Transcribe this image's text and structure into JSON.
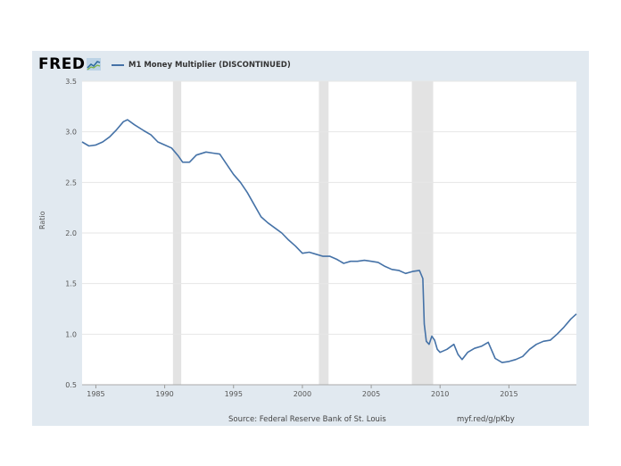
{
  "header": {
    "logo_text": "FRED",
    "legend_label": "M1 Money Multiplier (DISCONTINUED)"
  },
  "footer": {
    "source": "Source: Federal Reserve Bank of St. Louis",
    "link": "myf.red/g/pKby"
  },
  "colors": {
    "line": "#4572a7",
    "recession": "#e3e3e3",
    "card": "#e1e9f0",
    "grid": "#e6e6e6"
  },
  "chart_data": {
    "type": "line",
    "title": "M1 Money Multiplier (DISCONTINUED)",
    "xlabel": "",
    "ylabel": "Ratio",
    "xlim": [
      1984.0,
      2019.9
    ],
    "ylim": [
      0.5,
      3.5
    ],
    "xticks": [
      1985,
      1990,
      1995,
      2000,
      2005,
      2010,
      2015
    ],
    "xtick_labels": [
      "1985",
      "1990",
      "1995",
      "2000",
      "2005",
      "2010",
      "2015"
    ],
    "yticks": [
      0.5,
      1.0,
      1.5,
      2.0,
      2.5,
      3.0,
      3.5
    ],
    "ytick_labels": [
      "0.5",
      "1.0",
      "1.5",
      "2.0",
      "2.5",
      "3.0",
      "3.5"
    ],
    "recessions": [
      [
        1990.6,
        1991.2
      ],
      [
        2001.2,
        2001.9
      ],
      [
        2007.95,
        2009.5
      ]
    ],
    "series": [
      {
        "name": "M1 Money Multiplier (DISCONTINUED)",
        "x": [
          1984.0,
          1984.5,
          1985.0,
          1985.5,
          1986.0,
          1986.5,
          1987.0,
          1987.3,
          1987.8,
          1988.5,
          1989.0,
          1989.5,
          1990.0,
          1990.5,
          1991.0,
          1991.3,
          1991.8,
          1992.3,
          1993.0,
          1993.5,
          1994.0,
          1994.5,
          1995.0,
          1995.5,
          1996.0,
          1996.5,
          1997.0,
          1997.5,
          1998.0,
          1998.5,
          1999.0,
          1999.5,
          2000.0,
          2000.5,
          2001.0,
          2001.5,
          2002.0,
          2002.5,
          2003.0,
          2003.5,
          2004.0,
          2004.5,
          2005.0,
          2005.5,
          2006.0,
          2006.5,
          2007.0,
          2007.5,
          2008.0,
          2008.5,
          2008.75,
          2008.85,
          2009.0,
          2009.2,
          2009.4,
          2009.6,
          2009.8,
          2010.0,
          2010.5,
          2011.0,
          2011.3,
          2011.6,
          2012.0,
          2012.5,
          2013.0,
          2013.5,
          2014.0,
          2014.5,
          2015.0,
          2015.5,
          2016.0,
          2016.5,
          2017.0,
          2017.5,
          2018.0,
          2018.5,
          2019.0,
          2019.5,
          2019.9
        ],
        "y": [
          2.9,
          2.86,
          2.87,
          2.9,
          2.95,
          3.02,
          3.1,
          3.12,
          3.07,
          3.01,
          2.97,
          2.9,
          2.87,
          2.84,
          2.76,
          2.7,
          2.7,
          2.77,
          2.8,
          2.79,
          2.78,
          2.68,
          2.58,
          2.5,
          2.4,
          2.28,
          2.16,
          2.1,
          2.05,
          2.0,
          1.93,
          1.87,
          1.8,
          1.81,
          1.79,
          1.77,
          1.77,
          1.74,
          1.7,
          1.72,
          1.72,
          1.73,
          1.72,
          1.71,
          1.67,
          1.64,
          1.63,
          1.6,
          1.62,
          1.63,
          1.55,
          1.1,
          0.93,
          0.9,
          0.98,
          0.94,
          0.85,
          0.82,
          0.85,
          0.9,
          0.8,
          0.75,
          0.82,
          0.86,
          0.88,
          0.92,
          0.76,
          0.72,
          0.73,
          0.75,
          0.78,
          0.85,
          0.9,
          0.93,
          0.94,
          1.0,
          1.07,
          1.15,
          1.2
        ]
      }
    ]
  }
}
